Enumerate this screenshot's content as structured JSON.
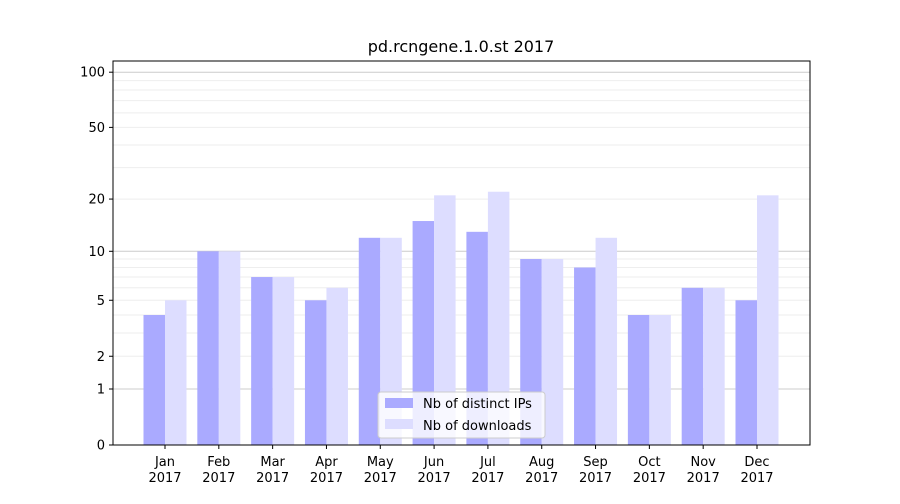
{
  "chart_data": {
    "type": "bar",
    "title": "pd.rcngene.1.0.st 2017",
    "xlabel": "",
    "ylabel": "",
    "yscale": "log10(1+y)",
    "ylim": [
      0,
      115
    ],
    "yticks": [
      0,
      1,
      2,
      5,
      10,
      20,
      50,
      100
    ],
    "categories": [
      "Jan\n2017",
      "Feb\n2017",
      "Mar\n2017",
      "Apr\n2017",
      "May\n2017",
      "Jun\n2017",
      "Jul\n2017",
      "Aug\n2017",
      "Sep\n2017",
      "Oct\n2017",
      "Nov\n2017",
      "Dec\n2017"
    ],
    "series": [
      {
        "name": "Nb of distinct IPs",
        "color": "#aaaaff",
        "values": [
          4,
          10,
          7,
          5,
          12,
          15,
          13,
          9,
          8,
          4,
          6,
          5
        ]
      },
      {
        "name": "Nb of downloads",
        "color": "#ddddff",
        "values": [
          5,
          10,
          7,
          6,
          12,
          21,
          22,
          9,
          12,
          4,
          6,
          21
        ]
      }
    ],
    "legend_position": "lower-center",
    "grid": true
  }
}
